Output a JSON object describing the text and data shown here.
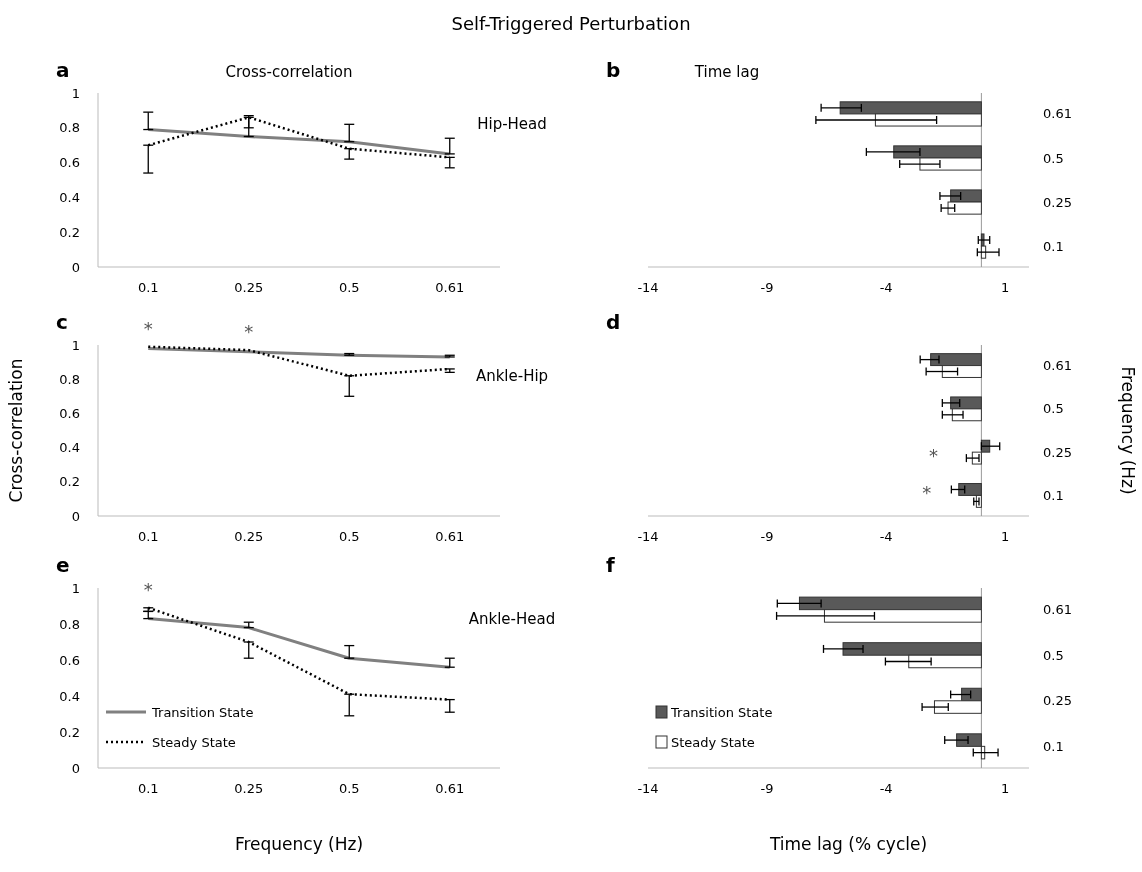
{
  "chart_data": [
    {
      "type": "line",
      "title": "Self-Triggered Perturbation",
      "subtitle": "Cross-correlation",
      "annotations": [
        "a",
        "Hip-Head"
      ],
      "categories": [
        "0.1",
        "0.25",
        "0.5",
        "0.61"
      ],
      "ylim": [
        0,
        1
      ],
      "yticks": [
        0,
        0.2,
        0.4,
        0.6,
        0.8,
        1
      ],
      "series": [
        {
          "color": "#808080",
          "line_style": "solid",
          "values": [
            0.79,
            0.75,
            0.72,
            0.65
          ],
          "errors": [
            [
              0.79,
              0.89
            ],
            [
              0.75,
              0.87
            ],
            [
              0.72,
              0.82
            ],
            [
              0.65,
              0.74
            ]
          ]
        },
        {
          "color": "#000000",
          "line_style": "dotted",
          "values": [
            0.7,
            0.86,
            0.68,
            0.63
          ],
          "errors": [
            [
              0.54,
              0.7
            ],
            [
              0.8,
              0.86
            ],
            [
              0.62,
              0.68
            ],
            [
              0.57,
              0.63
            ]
          ]
        }
      ]
    },
    {
      "type": "bar",
      "orientation": "horizontal",
      "title": "Time lag",
      "annotations": [
        "b"
      ],
      "categories": [
        "0.61",
        "0.5",
        "0.25",
        "0.1"
      ],
      "xlim": [
        -14,
        2
      ],
      "xticks": [
        -14,
        -9,
        -4,
        1
      ],
      "series": [
        {
          "color": "#595959",
          "values": [
            -5.93,
            -3.68,
            -1.29,
            0.11
          ],
          "errors": [
            [
              -6.73,
              -5.04
            ],
            [
              -4.83,
              -2.58
            ],
            [
              -1.74,
              -0.87
            ],
            [
              -0.13,
              0.35
            ]
          ]
        },
        {
          "color": "#ffffff",
          "values": [
            -4.45,
            -2.58,
            -1.4,
            0.18
          ],
          "errors": [
            [
              -6.95,
              -1.88
            ],
            [
              -3.43,
              -1.74
            ],
            [
              -1.69,
              -1.12
            ],
            [
              -0.17,
              0.74
            ]
          ]
        }
      ]
    },
    {
      "type": "line",
      "ylabel": "Cross-correlation",
      "annotations": [
        "c",
        "Ankle-Hip",
        {
          "text": "*",
          "x": "0.1",
          "y": 0.99
        },
        {
          "text": "*",
          "x": "0.25",
          "y": 0.97
        }
      ],
      "categories": [
        "0.1",
        "0.25",
        "0.5",
        "0.61"
      ],
      "ylim": [
        0,
        1
      ],
      "yticks": [
        0,
        0.2,
        0.4,
        0.6,
        0.8,
        1
      ],
      "series": [
        {
          "color": "#808080",
          "line_style": "solid",
          "values": [
            0.98,
            0.96,
            0.94,
            0.93
          ],
          "errors": [
            null,
            null,
            [
              0.94,
              0.95
            ],
            [
              0.93,
              0.94
            ]
          ]
        },
        {
          "color": "#000000",
          "line_style": "dotted",
          "values": [
            0.99,
            0.97,
            0.82,
            0.86
          ],
          "errors": [
            null,
            null,
            [
              0.7,
              0.82
            ],
            [
              0.84,
              0.86
            ]
          ]
        }
      ]
    },
    {
      "type": "bar",
      "orientation": "horizontal",
      "ylabel": "Frequency (Hz)",
      "annotations": [
        "d",
        "*",
        "*"
      ],
      "categories": [
        "0.61",
        "0.5",
        "0.25",
        "0.1"
      ],
      "xlim": [
        -14,
        2
      ],
      "xticks": [
        -14,
        -9,
        -4,
        1
      ],
      "series": [
        {
          "color": "#595959",
          "values": [
            -2.13,
            -1.29,
            0.35,
            -0.95
          ],
          "errors": [
            [
              -2.57,
              -1.78
            ],
            [
              -1.64,
              -0.91
            ],
            [
              0,
              0.77
            ],
            [
              -1.26,
              -0.7
            ]
          ]
        },
        {
          "color": "#ffffff",
          "values": [
            -1.64,
            -1.22,
            -0.38,
            -0.21
          ],
          "errors": [
            [
              -2.32,
              -1.0
            ],
            [
              -1.64,
              -0.77
            ],
            [
              -0.63,
              -0.1
            ],
            [
              -0.32,
              -0.1
            ]
          ]
        }
      ]
    },
    {
      "type": "line",
      "xlabel": "Frequency (Hz)",
      "legend": "bottom left",
      "annotations": [
        "e",
        "Ankle-Head",
        {
          "text": "*",
          "x": "0.1",
          "y": 0.89
        }
      ],
      "categories": [
        "0.1",
        "0.25",
        "0.5",
        "0.61"
      ],
      "ylim": [
        0,
        1
      ],
      "yticks": [
        0,
        0.2,
        0.4,
        0.6,
        0.8,
        1
      ],
      "series": [
        {
          "name": "Transition State",
          "color": "#808080",
          "line_style": "solid",
          "values": [
            0.83,
            0.78,
            0.61,
            0.56
          ],
          "errors": [
            [
              0.83,
              0.87
            ],
            [
              0.78,
              0.81
            ],
            [
              0.61,
              0.68
            ],
            [
              0.56,
              0.61
            ]
          ]
        },
        {
          "name": "Steady State",
          "color": "#000000",
          "line_style": "dotted",
          "values": [
            0.89,
            0.7,
            0.41,
            0.38
          ],
          "errors": [
            [
              0.87,
              0.89
            ],
            [
              0.61,
              0.7
            ],
            [
              0.29,
              0.41
            ],
            [
              0.31,
              0.38
            ]
          ]
        }
      ]
    },
    {
      "type": "bar",
      "orientation": "horizontal",
      "xlabel": "Time lag (% cycle)",
      "legend": "bottom left",
      "annotations": [
        "f"
      ],
      "categories": [
        "0.61",
        "0.5",
        "0.25",
        "0.1"
      ],
      "xlim": [
        -14,
        2
      ],
      "xticks": [
        -14,
        -9,
        -4,
        1
      ],
      "series": [
        {
          "name": "Transition State",
          "color": "#595959",
          "values": [
            -7.64,
            -5.81,
            -0.83,
            -1.04
          ],
          "errors": [
            [
              -8.57,
              -6.73
            ],
            [
              -6.63,
              -4.97
            ],
            [
              -1.29,
              -0.45
            ],
            [
              -1.54,
              -0.56
            ]
          ]
        },
        {
          "name": "Steady State",
          "color": "#ffffff",
          "values": [
            -6.59,
            -3.05,
            -1.97,
            0.14
          ],
          "errors": [
            [
              -8.6,
              -4.49
            ],
            [
              -4.03,
              -2.11
            ],
            [
              -2.49,
              -1.39
            ],
            [
              -0.34,
              0.7
            ]
          ]
        }
      ]
    }
  ]
}
